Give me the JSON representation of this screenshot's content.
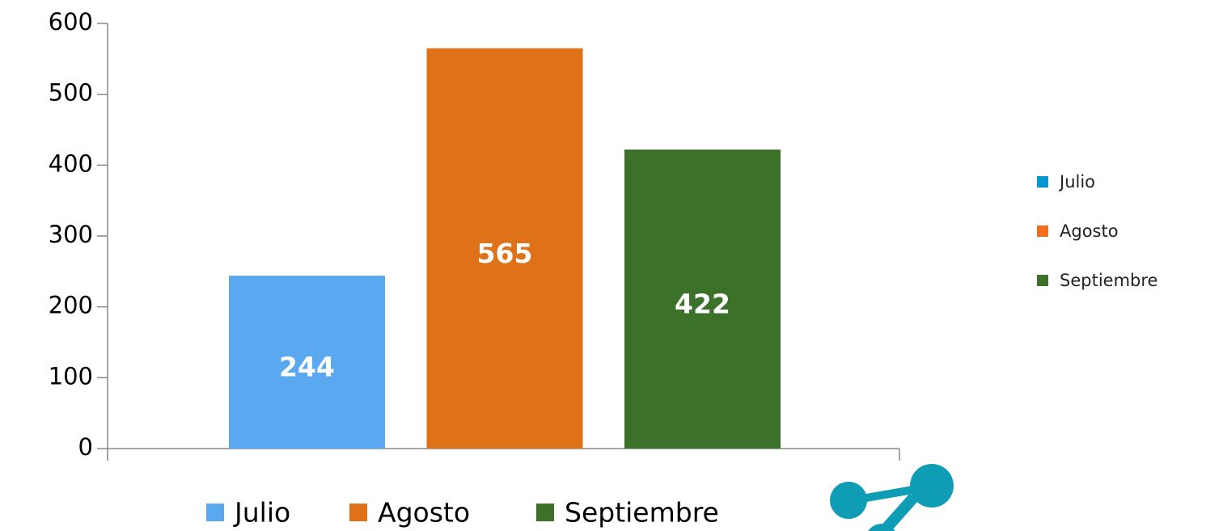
{
  "chart_data": {
    "type": "bar",
    "categories": [
      null
    ],
    "series": [
      {
        "name": "Julio",
        "color": "#5aa9f0",
        "values": [
          244
        ]
      },
      {
        "name": "Agosto",
        "color": "#df7219",
        "values": [
          565
        ]
      },
      {
        "name": "Septiembre",
        "color": "#3c712a",
        "values": [
          422
        ]
      }
    ],
    "right_legend_colors": [
      "#0096d6",
      "#f56d1a",
      "#3c712a"
    ],
    "ylim": [
      0,
      600
    ],
    "yticks": [
      0,
      100,
      200,
      300,
      400,
      500,
      600
    ],
    "grid": false,
    "legend": "bottom"
  }
}
